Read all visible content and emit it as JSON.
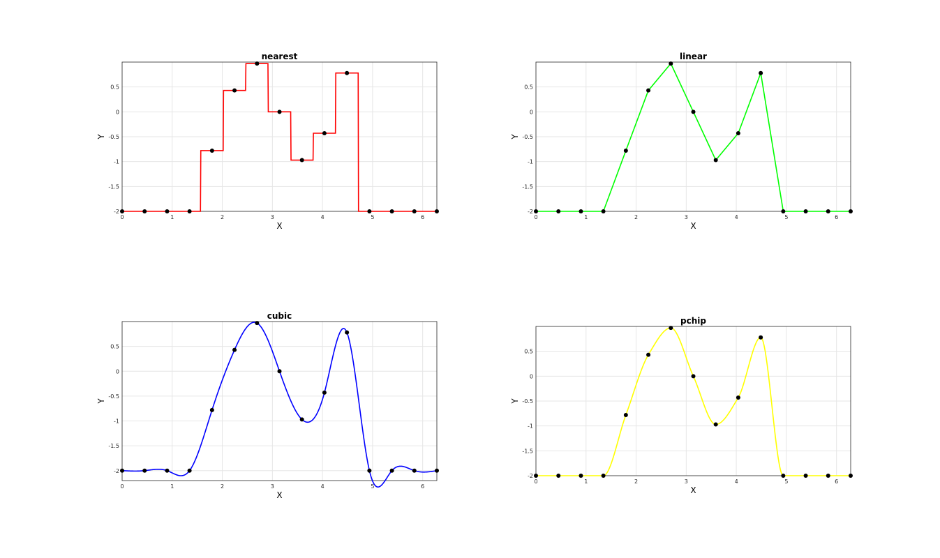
{
  "figure": {
    "background": "#ffffff"
  },
  "chart_data": [
    {
      "type": "line",
      "title": "nearest",
      "xlabel": "X",
      "ylabel": "Y",
      "method": "nearest",
      "line_color": "#ff0000",
      "marker_color": "#000000",
      "xlim": [
        0,
        6.2832
      ],
      "ylim": [
        -2,
        1
      ],
      "xticks": [
        "0",
        "1",
        "2",
        "3",
        "4",
        "5",
        "6"
      ],
      "yticks": [
        "-2",
        "-1.5",
        "-1",
        "-0.5",
        "0",
        "0.5"
      ],
      "grid": true,
      "points": {
        "x": [
          0,
          0.449,
          0.898,
          1.346,
          1.795,
          2.244,
          2.693,
          3.142,
          3.59,
          4.039,
          4.488,
          4.937,
          5.386,
          5.834,
          6.283
        ],
        "y": [
          -2,
          -2,
          -2,
          -2,
          -0.78,
          0.43,
          0.97,
          0,
          -0.97,
          -0.43,
          0.78,
          -2,
          -2,
          -2,
          -2
        ]
      }
    },
    {
      "type": "line",
      "title": "linear",
      "xlabel": "X",
      "ylabel": "Y",
      "method": "linear",
      "line_color": "#00ff00",
      "marker_color": "#000000",
      "xlim": [
        0,
        6.2832
      ],
      "ylim": [
        -2,
        1
      ],
      "xticks": [
        "0",
        "1",
        "2",
        "3",
        "4",
        "5",
        "6"
      ],
      "yticks": [
        "-2",
        "-1.5",
        "-1",
        "-0.5",
        "0",
        "0.5"
      ],
      "grid": true,
      "points": {
        "x": [
          0,
          0.449,
          0.898,
          1.346,
          1.795,
          2.244,
          2.693,
          3.142,
          3.59,
          4.039,
          4.488,
          4.937,
          5.386,
          5.834,
          6.283
        ],
        "y": [
          -2,
          -2,
          -2,
          -2,
          -0.78,
          0.43,
          0.97,
          0,
          -0.97,
          -0.43,
          0.78,
          -2,
          -2,
          -2,
          -2
        ]
      }
    },
    {
      "type": "line",
      "title": "cubic",
      "xlabel": "X",
      "ylabel": "Y",
      "method": "cubic",
      "line_color": "#0000ff",
      "marker_color": "#000000",
      "xlim": [
        0,
        6.2832
      ],
      "ylim": [
        -2.2,
        1
      ],
      "xticks": [
        "0",
        "1",
        "2",
        "3",
        "4",
        "5",
        "6"
      ],
      "yticks": [
        "-2",
        "-1.5",
        "-1",
        "-0.5",
        "0",
        "0.5"
      ],
      "grid": true,
      "points": {
        "x": [
          0,
          0.449,
          0.898,
          1.346,
          1.795,
          2.244,
          2.693,
          3.142,
          3.59,
          4.039,
          4.488,
          4.937,
          5.386,
          5.834,
          6.283
        ],
        "y": [
          -2,
          -2,
          -2,
          -2,
          -0.78,
          0.43,
          0.97,
          0,
          -0.97,
          -0.43,
          0.78,
          -2,
          -2,
          -2,
          -2
        ]
      }
    },
    {
      "type": "line",
      "title": "pchip",
      "xlabel": "X",
      "ylabel": "Y",
      "method": "pchip",
      "line_color": "#ffff00",
      "marker_color": "#000000",
      "xlim": [
        0,
        6.2832
      ],
      "ylim": [
        -2,
        1
      ],
      "xticks": [
        "0",
        "1",
        "2",
        "3",
        "4",
        "5",
        "6"
      ],
      "yticks": [
        "-2",
        "-1.5",
        "-1",
        "-0.5",
        "0",
        "0.5"
      ],
      "grid": true,
      "points": {
        "x": [
          0,
          0.449,
          0.898,
          1.346,
          1.795,
          2.244,
          2.693,
          3.142,
          3.59,
          4.039,
          4.488,
          4.937,
          5.386,
          5.834,
          6.283
        ],
        "y": [
          -2,
          -2,
          -2,
          -2,
          -0.78,
          0.43,
          0.97,
          0,
          -0.97,
          -0.43,
          0.78,
          -2,
          -2,
          -2,
          -2
        ]
      }
    }
  ]
}
